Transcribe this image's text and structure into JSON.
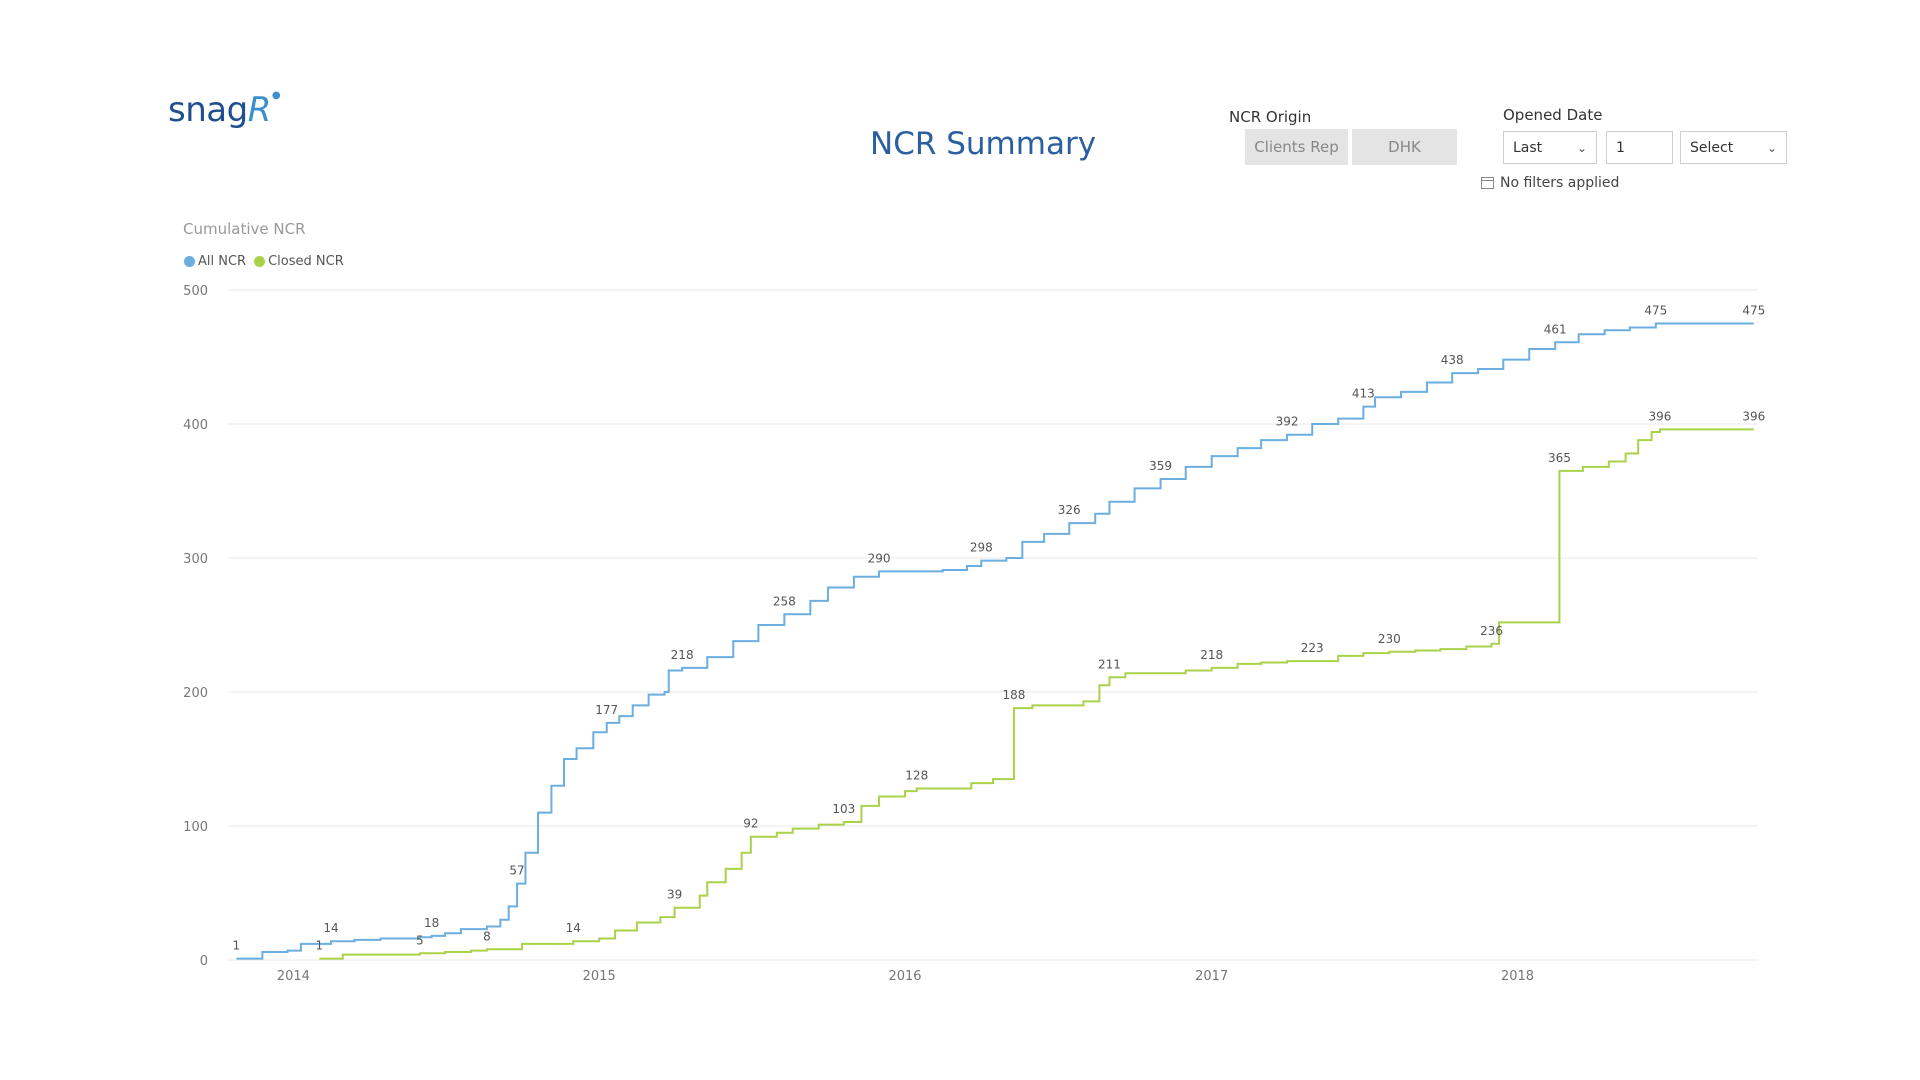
{
  "logo": {
    "text_main": "snag",
    "text_accent": "R"
  },
  "page_title": "NCR Summary",
  "ncr_origin": {
    "label": "NCR Origin",
    "options": [
      "Clients Rep",
      "DHK"
    ]
  },
  "opened_date": {
    "label": "Opened Date",
    "period_select": "Last",
    "period_value": "1",
    "unit_select": "Select",
    "status_text": "No filters applied"
  },
  "colors": {
    "all_ncr": "#6baee0",
    "closed_ncr": "#a9d24a",
    "title": "#2c5fa0",
    "logo": "#1f4f8f"
  },
  "icons": {
    "dropdown": "chevron-down-icon",
    "calendar": "calendar-icon"
  },
  "chart_data": {
    "type": "line",
    "title": "Cumulative NCR",
    "line_style": "step",
    "legend_position": "top-left",
    "ylim": [
      0,
      500
    ],
    "y_ticks": [
      "0",
      "100",
      "200",
      "300",
      "400",
      "500"
    ],
    "xlim": [
      "2013-10-15",
      "2018-10-15"
    ],
    "x_ticks": [
      {
        "date": "2014-01-01",
        "label": "2014"
      },
      {
        "date": "2015-01-01",
        "label": "2015"
      },
      {
        "date": "2016-01-01",
        "label": "2016"
      },
      {
        "date": "2017-01-01",
        "label": "2017"
      },
      {
        "date": "2018-01-01",
        "label": "2018"
      }
    ],
    "grid": true,
    "series": [
      {
        "name": "All NCR",
        "color": "#6baee0",
        "points": [
          [
            "2013-10-25",
            1
          ],
          [
            "2013-11-25",
            6
          ],
          [
            "2013-12-25",
            7
          ],
          [
            "2014-01-10",
            12
          ],
          [
            "2014-02-15",
            14
          ],
          [
            "2014-03-15",
            15
          ],
          [
            "2014-04-15",
            16
          ],
          [
            "2014-06-01",
            17
          ],
          [
            "2014-06-15",
            18
          ],
          [
            "2014-07-01",
            20
          ],
          [
            "2014-07-20",
            23
          ],
          [
            "2014-08-20",
            25
          ],
          [
            "2014-09-05",
            30
          ],
          [
            "2014-09-15",
            40
          ],
          [
            "2014-09-25",
            57
          ],
          [
            "2014-10-05",
            80
          ],
          [
            "2014-10-20",
            110
          ],
          [
            "2014-11-05",
            130
          ],
          [
            "2014-11-20",
            150
          ],
          [
            "2014-12-05",
            158
          ],
          [
            "2014-12-25",
            170
          ],
          [
            "2015-01-10",
            177
          ],
          [
            "2015-01-25",
            182
          ],
          [
            "2015-02-10",
            190
          ],
          [
            "2015-03-01",
            198
          ],
          [
            "2015-03-20",
            200
          ],
          [
            "2015-03-25",
            216
          ],
          [
            "2015-04-10",
            218
          ],
          [
            "2015-05-10",
            226
          ],
          [
            "2015-06-10",
            238
          ],
          [
            "2015-07-10",
            250
          ],
          [
            "2015-08-10",
            258
          ],
          [
            "2015-09-10",
            268
          ],
          [
            "2015-10-01",
            278
          ],
          [
            "2015-11-01",
            286
          ],
          [
            "2015-12-01",
            290
          ],
          [
            "2016-01-15",
            290
          ],
          [
            "2016-02-15",
            291
          ],
          [
            "2016-03-15",
            294
          ],
          [
            "2016-04-01",
            298
          ],
          [
            "2016-05-01",
            300
          ],
          [
            "2016-05-20",
            312
          ],
          [
            "2016-06-15",
            318
          ],
          [
            "2016-07-15",
            326
          ],
          [
            "2016-08-15",
            333
          ],
          [
            "2016-09-01",
            342
          ],
          [
            "2016-10-01",
            352
          ],
          [
            "2016-11-01",
            359
          ],
          [
            "2016-12-01",
            368
          ],
          [
            "2017-01-01",
            376
          ],
          [
            "2017-02-01",
            382
          ],
          [
            "2017-03-01",
            388
          ],
          [
            "2017-04-01",
            392
          ],
          [
            "2017-05-01",
            400
          ],
          [
            "2017-06-01",
            404
          ],
          [
            "2017-07-01",
            413
          ],
          [
            "2017-07-15",
            420
          ],
          [
            "2017-08-15",
            424
          ],
          [
            "2017-09-15",
            431
          ],
          [
            "2017-10-15",
            438
          ],
          [
            "2017-11-15",
            441
          ],
          [
            "2017-12-15",
            448
          ],
          [
            "2018-01-15",
            456
          ],
          [
            "2018-02-15",
            461
          ],
          [
            "2018-03-15",
            467
          ],
          [
            "2018-04-15",
            470
          ],
          [
            "2018-05-15",
            472
          ],
          [
            "2018-06-15",
            475
          ],
          [
            "2018-10-10",
            475
          ]
        ],
        "labels": [
          [
            "2013-10-25",
            1
          ],
          [
            "2014-02-15",
            14
          ],
          [
            "2014-06-15",
            18
          ],
          [
            "2014-09-25",
            57
          ],
          [
            "2015-01-10",
            177
          ],
          [
            "2015-04-10",
            218
          ],
          [
            "2015-08-10",
            258
          ],
          [
            "2015-12-01",
            290
          ],
          [
            "2016-04-01",
            298
          ],
          [
            "2016-07-15",
            326
          ],
          [
            "2016-11-01",
            359
          ],
          [
            "2017-04-01",
            392
          ],
          [
            "2017-07-01",
            413
          ],
          [
            "2017-10-15",
            438
          ],
          [
            "2018-02-15",
            461
          ],
          [
            "2018-06-15",
            475
          ],
          [
            "2018-10-10",
            475
          ]
        ]
      },
      {
        "name": "Closed NCR",
        "color": "#a9d24a",
        "points": [
          [
            "2014-02-01",
            1
          ],
          [
            "2014-03-01",
            4
          ],
          [
            "2014-06-01",
            5
          ],
          [
            "2014-07-01",
            6
          ],
          [
            "2014-08-01",
            7
          ],
          [
            "2014-08-20",
            8
          ],
          [
            "2014-10-01",
            12
          ],
          [
            "2014-12-01",
            14
          ],
          [
            "2015-01-01",
            16
          ],
          [
            "2015-01-20",
            22
          ],
          [
            "2015-02-15",
            28
          ],
          [
            "2015-03-15",
            32
          ],
          [
            "2015-04-01",
            39
          ],
          [
            "2015-05-01",
            48
          ],
          [
            "2015-05-10",
            58
          ],
          [
            "2015-06-01",
            68
          ],
          [
            "2015-06-20",
            80
          ],
          [
            "2015-07-01",
            92
          ],
          [
            "2015-08-01",
            95
          ],
          [
            "2015-08-20",
            98
          ],
          [
            "2015-09-20",
            101
          ],
          [
            "2015-10-20",
            103
          ],
          [
            "2015-11-10",
            115
          ],
          [
            "2015-12-01",
            122
          ],
          [
            "2016-01-01",
            126
          ],
          [
            "2016-01-15",
            128
          ],
          [
            "2016-03-01",
            128
          ],
          [
            "2016-03-20",
            132
          ],
          [
            "2016-04-15",
            135
          ],
          [
            "2016-05-10",
            188
          ],
          [
            "2016-06-01",
            190
          ],
          [
            "2016-07-01",
            190
          ],
          [
            "2016-08-01",
            193
          ],
          [
            "2016-08-20",
            205
          ],
          [
            "2016-09-01",
            211
          ],
          [
            "2016-09-20",
            214
          ],
          [
            "2016-12-01",
            216
          ],
          [
            "2017-01-01",
            218
          ],
          [
            "2017-02-01",
            221
          ],
          [
            "2017-03-01",
            222
          ],
          [
            "2017-04-01",
            223
          ],
          [
            "2017-05-01",
            223
          ],
          [
            "2017-06-01",
            227
          ],
          [
            "2017-07-01",
            229
          ],
          [
            "2017-08-01",
            230
          ],
          [
            "2017-09-01",
            231
          ],
          [
            "2017-10-01",
            232
          ],
          [
            "2017-11-01",
            234
          ],
          [
            "2017-12-01",
            236
          ],
          [
            "2017-12-10",
            252
          ],
          [
            "2018-02-20",
            365
          ],
          [
            "2018-03-20",
            368
          ],
          [
            "2018-04-20",
            372
          ],
          [
            "2018-05-10",
            378
          ],
          [
            "2018-05-25",
            388
          ],
          [
            "2018-06-10",
            394
          ],
          [
            "2018-06-20",
            396
          ],
          [
            "2018-10-10",
            396
          ]
        ],
        "labels": [
          [
            "2014-02-01",
            1
          ],
          [
            "2014-06-01",
            5
          ],
          [
            "2014-08-20",
            8
          ],
          [
            "2014-12-01",
            14
          ],
          [
            "2015-04-01",
            39
          ],
          [
            "2015-07-01",
            92
          ],
          [
            "2015-10-20",
            103
          ],
          [
            "2016-01-15",
            128
          ],
          [
            "2016-05-10",
            188
          ],
          [
            "2016-09-01",
            211
          ],
          [
            "2017-01-01",
            218
          ],
          [
            "2017-05-01",
            223
          ],
          [
            "2017-08-01",
            230
          ],
          [
            "2017-12-01",
            236
          ],
          [
            "2018-02-20",
            365
          ],
          [
            "2018-06-20",
            396
          ],
          [
            "2018-10-10",
            396
          ]
        ]
      }
    ]
  }
}
